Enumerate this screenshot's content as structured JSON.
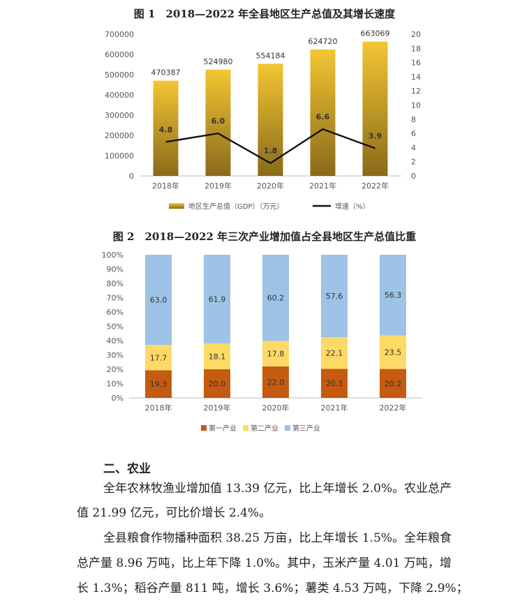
{
  "chart_data": [
    {
      "type": "bar+line",
      "title": "图 1　2018—2022 年全县地区生产总值及其增长速度",
      "categories": [
        "2018年",
        "2019年",
        "2020年",
        "2021年",
        "2022年"
      ],
      "series": [
        {
          "name": "地区生产总值（GDP）（万元）",
          "type": "bar",
          "axis": "left",
          "values": [
            470387,
            524980,
            554184,
            624720,
            663069
          ]
        },
        {
          "name": "增速（%）",
          "type": "line",
          "axis": "right",
          "values": [
            4.8,
            6.0,
            1.8,
            6.6,
            3.9
          ]
        }
      ],
      "ylim_left": [
        0,
        700000
      ],
      "yticks_left": [
        "0",
        "100000",
        "200000",
        "300000",
        "400000",
        "500000",
        "600000",
        "700000"
      ],
      "ylim_right": [
        0,
        20
      ],
      "yticks_right": [
        "0",
        "2",
        "4",
        "6",
        "8",
        "10",
        "12",
        "14",
        "16",
        "18",
        "20"
      ],
      "legend_position": "bottom",
      "colors": {
        "bar_top": "#f3c633",
        "bar_bottom": "#8a6a1a",
        "line": "#111111"
      }
    },
    {
      "type": "stacked_bar",
      "title": "图 2　2018—2022 年三次产业增加值占全县地区生产总值比重",
      "categories": [
        "2018年",
        "2019年",
        "2020年",
        "2021年",
        "2022年"
      ],
      "series": [
        {
          "name": "第一产业",
          "values": [
            19.3,
            20.0,
            22.0,
            20.3,
            20.2
          ],
          "color": "#c55a11"
        },
        {
          "name": "第二产业",
          "values": [
            17.7,
            18.1,
            17.8,
            22.1,
            23.5
          ],
          "color": "#ffd966"
        },
        {
          "name": "第三产业",
          "values": [
            63.0,
            61.9,
            60.2,
            57.6,
            56.3
          ],
          "color": "#9dc3e6"
        }
      ],
      "value_labels": [
        [
          "19.3",
          "20.0",
          "22.0",
          "20.3",
          "20.2"
        ],
        [
          "17.7",
          "18.1",
          "17.8",
          "22.1",
          "23.5"
        ],
        [
          "63.0",
          "61.9",
          "60.2",
          "57.6",
          "56.3"
        ]
      ],
      "ylim": [
        0,
        100
      ],
      "yticks": [
        "0%",
        "10%",
        "20%",
        "30%",
        "40%",
        "50%",
        "60%",
        "70%",
        "80%",
        "90%",
        "100%"
      ],
      "legend_position": "bottom"
    }
  ],
  "section": {
    "heading": "二、农业",
    "lines": [
      "全年农林牧渔业增加值 13.39 亿元，比上年增长 2.0%。农业总产",
      "值 21.99 亿元，可比价增长 2.4%。",
      "全县粮食作物播种面积 38.25 万亩，比上年增长 1.5%。全年粮食",
      "总产量 8.96 万吨，比上年下降 1.0%。其中，玉米产量 4.01 万吨，增",
      "长 1.3%；稻谷产量 811 吨，增长 3.6%；薯类 4.53 万吨，下降 2.9%；"
    ]
  }
}
